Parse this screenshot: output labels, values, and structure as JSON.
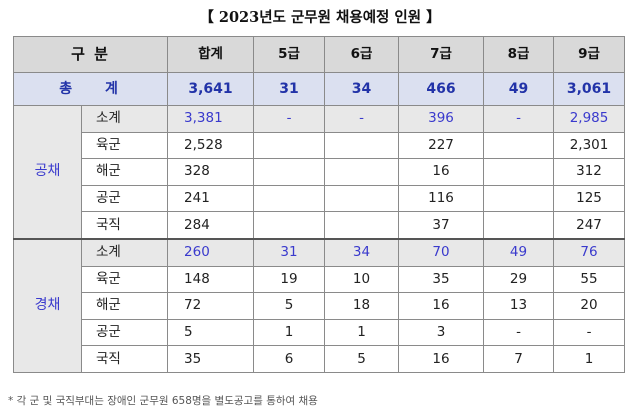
{
  "title": "【 2023년도 군무원 채용예정 인원 】",
  "header": {
    "gubun": "구 분",
    "total": "합계",
    "g5": "5급",
    "g6": "6급",
    "g7": "7급",
    "g8": "8급",
    "g9": "9급"
  },
  "grand_total": {
    "label": "총 계",
    "total": "3,641",
    "g5": "31",
    "g6": "34",
    "g7": "466",
    "g8": "49",
    "g9": "3,061"
  },
  "public": {
    "group": "공채",
    "rows": [
      {
        "unit": "소계",
        "total": "3,381",
        "g5": "-",
        "g6": "-",
        "g7": "396",
        "g8": "-",
        "g9": "2,985"
      },
      {
        "unit": "육군",
        "total": "2,528",
        "g5": "",
        "g6": "",
        "g7": "227",
        "g8": "",
        "g9": "2,301"
      },
      {
        "unit": "해군",
        "total": "328",
        "g5": "",
        "g6": "",
        "g7": "16",
        "g8": "",
        "g9": "312"
      },
      {
        "unit": "공군",
        "total": "241",
        "g5": "",
        "g6": "",
        "g7": "116",
        "g8": "",
        "g9": "125"
      },
      {
        "unit": "국직",
        "total": "284",
        "g5": "",
        "g6": "",
        "g7": "37",
        "g8": "",
        "g9": "247"
      }
    ]
  },
  "career": {
    "group": "경채",
    "rows": [
      {
        "unit": "소계",
        "total": "260",
        "g5": "31",
        "g6": "34",
        "g7": "70",
        "g8": "49",
        "g9": "76"
      },
      {
        "unit": "육군",
        "total": "148",
        "g5": "19",
        "g6": "10",
        "g7": "35",
        "g8": "29",
        "g9": "55"
      },
      {
        "unit": "해군",
        "total": "72",
        "g5": "5",
        "g6": "18",
        "g7": "16",
        "g8": "13",
        "g9": "20"
      },
      {
        "unit": "공군",
        "total": "5",
        "g5": "1",
        "g6": "1",
        "g7": "3",
        "g8": "-",
        "g9": "-"
      },
      {
        "unit": "국직",
        "total": "35",
        "g5": "6",
        "g6": "5",
        "g7": "16",
        "g8": "7",
        "g9": "1"
      }
    ]
  },
  "footnote": "* 각 군 및 국직부대는 장애인 군무원 658명을 별도공고를 통하여 채용"
}
